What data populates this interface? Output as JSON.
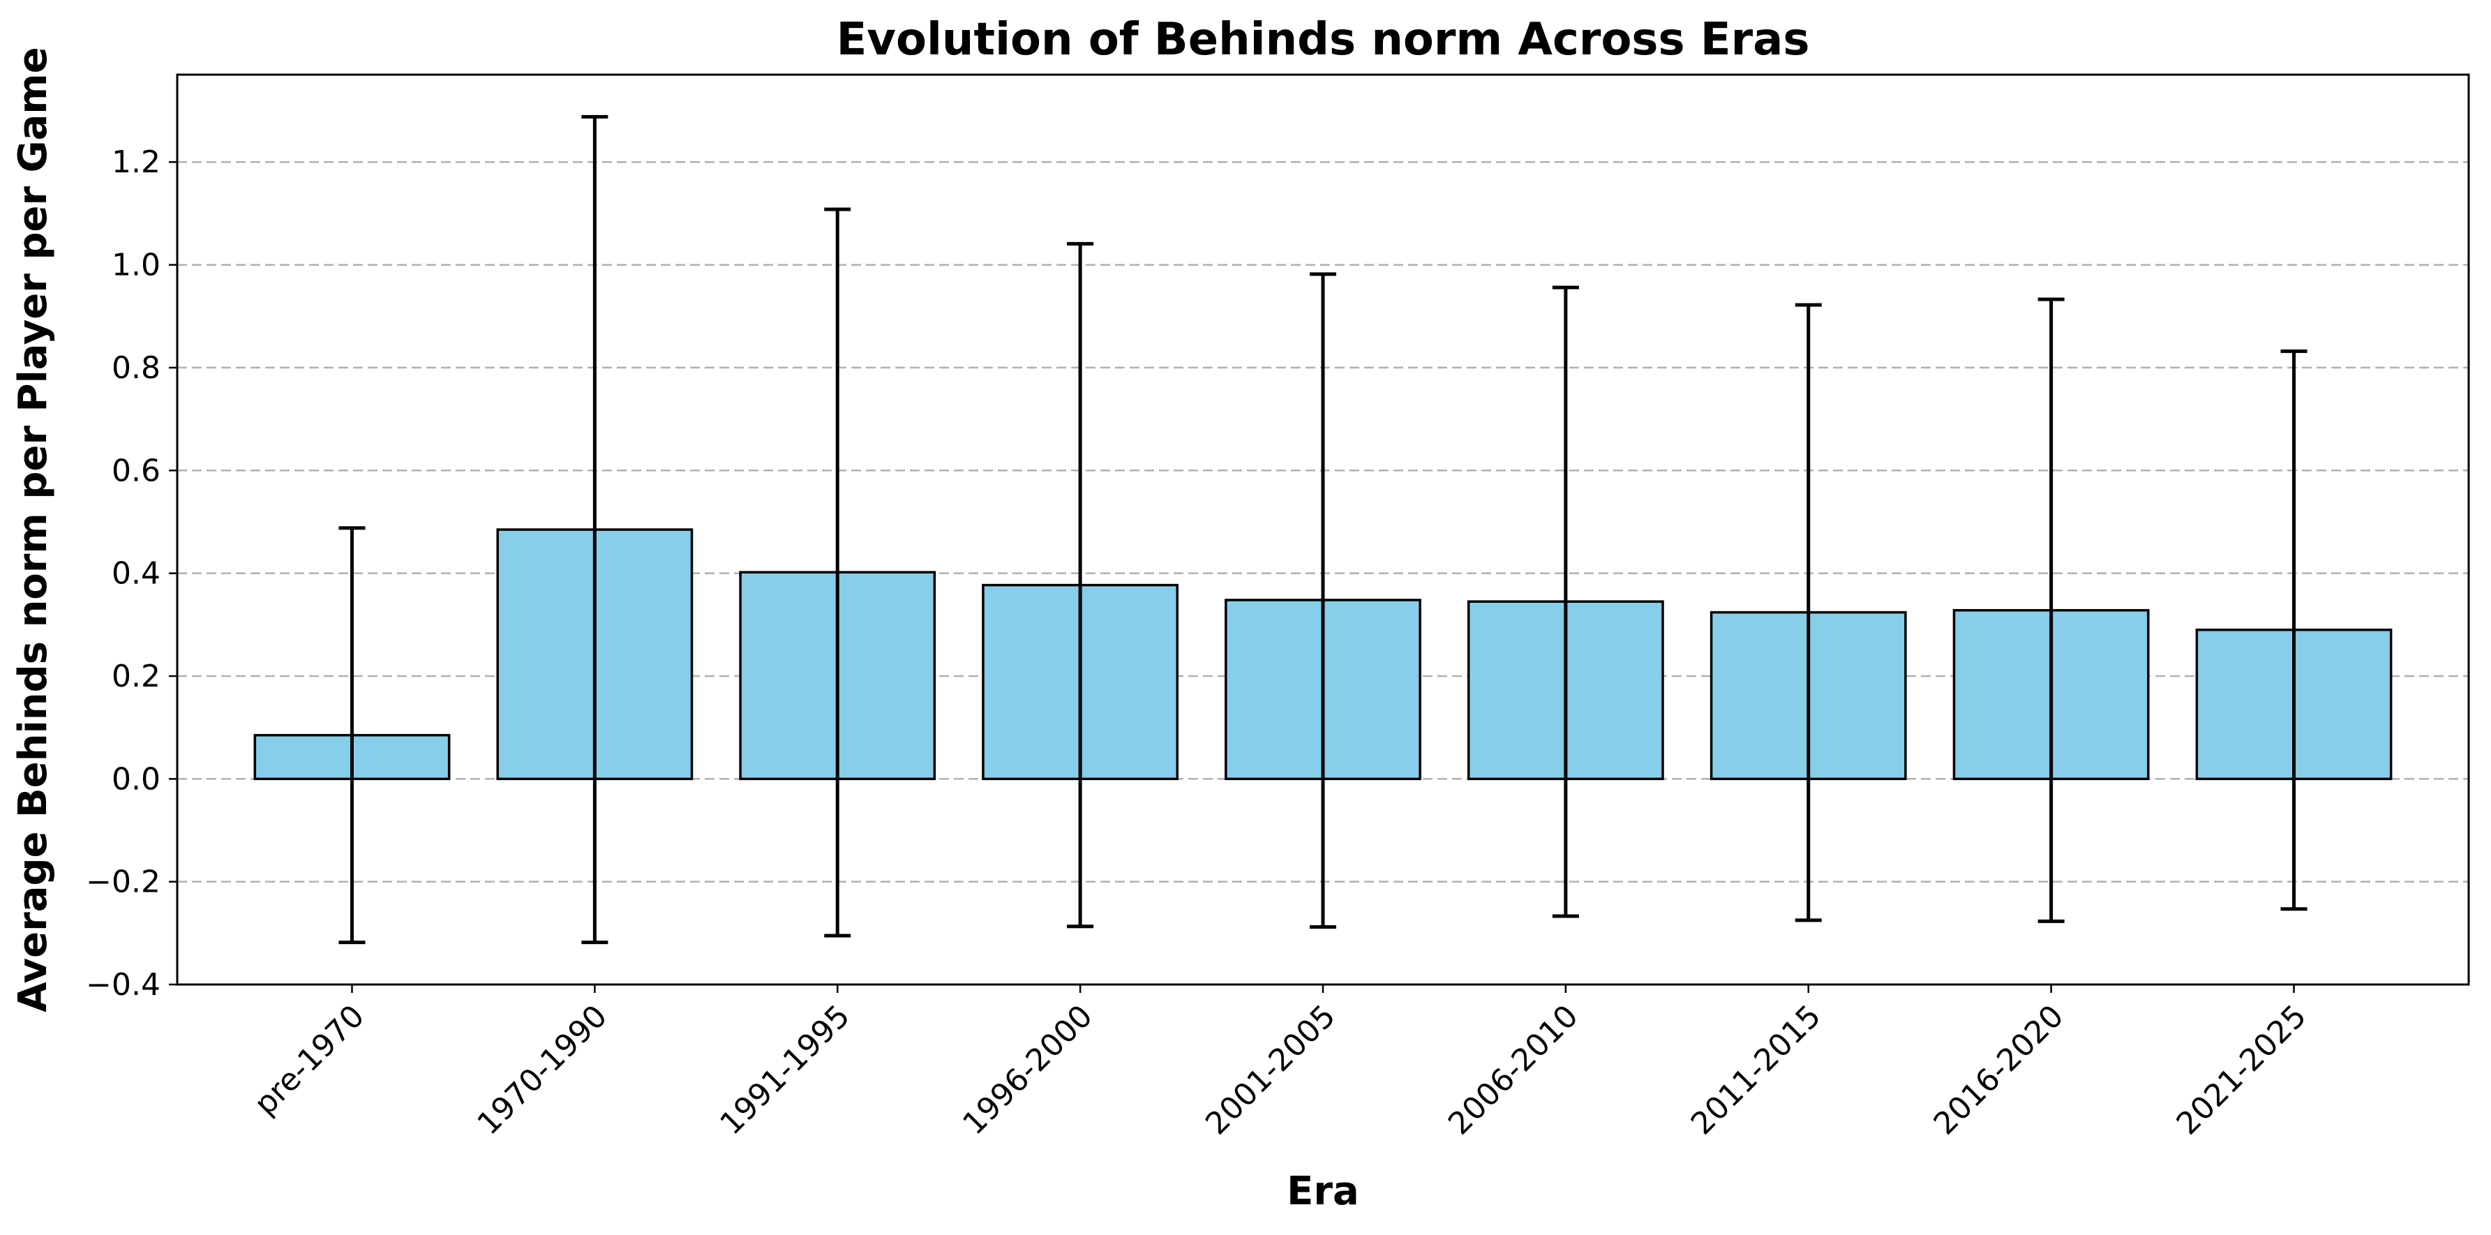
{
  "chart_data": {
    "type": "bar",
    "title": "Evolution of Behinds norm Across Eras",
    "xlabel": "Era",
    "ylabel": "Average Behinds norm per Player per Game",
    "categories": [
      "pre-1970",
      "1970-1990",
      "1991-1995",
      "1996-2000",
      "2001-2005",
      "2006-2010",
      "2011-2015",
      "2016-2020",
      "2021-2025"
    ],
    "values": [
      0.085,
      0.485,
      0.402,
      0.377,
      0.348,
      0.345,
      0.324,
      0.328,
      0.29
    ],
    "error_low": [
      -0.318,
      -0.318,
      -0.305,
      -0.287,
      -0.288,
      -0.267,
      -0.275,
      -0.277,
      -0.253
    ],
    "error_high": [
      0.488,
      1.288,
      1.108,
      1.041,
      0.982,
      0.956,
      0.922,
      0.933,
      0.832
    ],
    "ylim": [
      -0.4,
      1.37
    ],
    "yticks": [
      -0.4,
      -0.2,
      0.0,
      0.2,
      0.4,
      0.6,
      0.8,
      1.0,
      1.2
    ],
    "ytick_labels": [
      "−0.4",
      "−0.2",
      "0.0",
      "0.2",
      "0.4",
      "0.6",
      "0.8",
      "1.0",
      "1.2"
    ],
    "grid": "y",
    "bar_color": "#87CEEB",
    "edge_color": "#000000"
  }
}
